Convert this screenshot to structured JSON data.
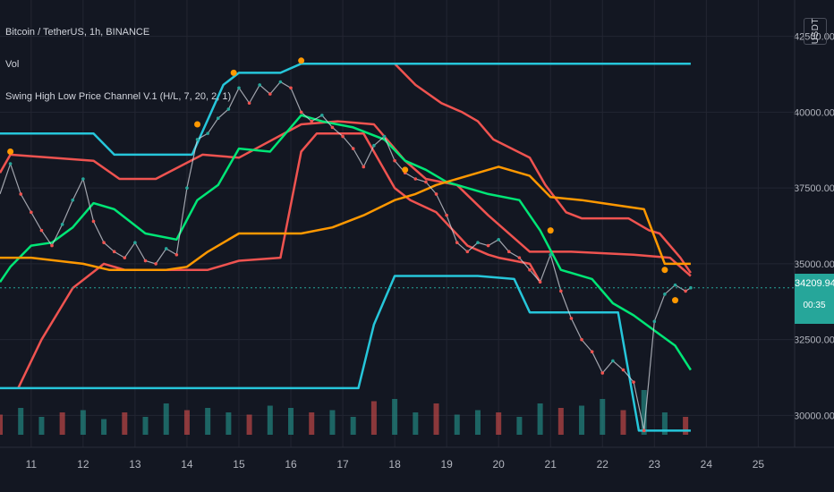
{
  "header": {
    "symbol_title": "Bitcoin / TetherUS, 1h, BINANCE",
    "volume_indicator": "Vol",
    "channel_indicator": "Swing High Low Price Channel V.1 (H/L, 7, 20, 2, 1)",
    "currency": "USDT"
  },
  "last_price": {
    "value": "34209.94",
    "countdown": "00:35",
    "color": "#26a69a"
  },
  "colors": {
    "background": "#131722",
    "grid": "#232632",
    "up": "#26a69a",
    "down": "#ef5350",
    "channel_high": "#ef5350",
    "channel_low": "#26c6da",
    "mid_green": "#00e676",
    "mid_orange": "#ff9800",
    "swing_marker": "#ff9800"
  },
  "chart_data": {
    "type": "line",
    "title": "Bitcoin / TetherUS, 1h, BINANCE",
    "x_ticks": [
      "11",
      "12",
      "13",
      "14",
      "15",
      "16",
      "17",
      "18",
      "19",
      "20",
      "21",
      "22",
      "23",
      "24",
      "25"
    ],
    "y_ticks": [
      "42500.00",
      "40000.00",
      "37500.00",
      "35000.00",
      "32500.00",
      "30000.00"
    ],
    "xlim": [
      10.4,
      25.7
    ],
    "ylim": [
      28950,
      43700
    ],
    "grid": true,
    "price_series": {
      "x": [
        10.4,
        10.6,
        10.8,
        11.0,
        11.2,
        11.4,
        11.6,
        11.8,
        12.0,
        12.2,
        12.4,
        12.6,
        12.8,
        13.0,
        13.2,
        13.4,
        13.6,
        13.8,
        14.0,
        14.2,
        14.4,
        14.6,
        14.8,
        15.0,
        15.2,
        15.4,
        15.6,
        15.8,
        16.0,
        16.2,
        16.4,
        16.6,
        16.8,
        17.0,
        17.2,
        17.4,
        17.6,
        17.8,
        18.0,
        18.2,
        18.4,
        18.6,
        18.8,
        19.0,
        19.2,
        19.4,
        19.6,
        19.8,
        20.0,
        20.2,
        20.4,
        20.6,
        20.8,
        21.0,
        21.2,
        21.4,
        21.6,
        21.8,
        22.0,
        22.2,
        22.4,
        22.6,
        22.8,
        23.0,
        23.2,
        23.4,
        23.6,
        23.7
      ],
      "y": [
        37300,
        38300,
        37300,
        36700,
        36100,
        35600,
        36300,
        37100,
        37800,
        36400,
        35700,
        35400,
        35200,
        35700,
        35100,
        35000,
        35500,
        35300,
        37500,
        39100,
        39300,
        39800,
        40100,
        40800,
        40300,
        40900,
        40600,
        41000,
        40800,
        40000,
        39700,
        39900,
        39500,
        39200,
        38800,
        38200,
        38900,
        39200,
        38400,
        38000,
        37800,
        37700,
        37300,
        36600,
        35700,
        35400,
        35700,
        35600,
        35800,
        35400,
        35200,
        34800,
        34400,
        35300,
        34100,
        33200,
        32500,
        32100,
        31400,
        31800,
        31500,
        31100,
        29500,
        33100,
        34000,
        34300,
        34100,
        34209.94
      ]
    },
    "series": [
      {
        "color": "#ef5350",
        "x": [
          10.4,
          10.6,
          12.2,
          12.7,
          13.4,
          14.3,
          15.0,
          16.2,
          16.9,
          17.6,
          18.2,
          18.6,
          19.2,
          19.8,
          20.6,
          21.4,
          22.6,
          23.3,
          23.7
        ],
        "y": [
          38000,
          38600,
          38400,
          37800,
          37800,
          38600,
          38500,
          39600,
          39700,
          39600,
          38400,
          37800,
          37600,
          36600,
          35400,
          35400,
          35300,
          35200,
          34600
        ]
      },
      {
        "color": "#ef5350",
        "x": [
          10.75,
          11.2,
          11.8,
          12.4,
          12.8,
          14.4,
          15.0,
          15.8,
          16.2,
          16.5,
          16.8,
          17.4,
          18.0,
          18.3,
          18.8,
          19.4,
          19.8,
          20.0,
          20.6,
          20.8
        ],
        "y": [
          30900,
          32500,
          34200,
          35000,
          34800,
          34800,
          35100,
          35200,
          38700,
          39300,
          39300,
          39300,
          37500,
          37100,
          36700,
          35600,
          35300,
          35200,
          35000,
          34400
        ]
      },
      {
        "color": "#ef5350",
        "x": [
          18.0,
          18.4,
          18.9,
          19.3,
          19.6,
          19.9,
          20.6,
          20.9,
          21.3,
          21.6,
          21.9,
          22.5,
          22.9,
          23.1,
          23.5,
          23.7
        ],
        "y": [
          41600,
          40900,
          40300,
          40000,
          39700,
          39100,
          38500,
          37600,
          36700,
          36500,
          36500,
          36500,
          36100,
          36000,
          35200,
          34700
        ]
      },
      {
        "color": "#26c6da",
        "x": [
          10.4,
          12.2,
          12.6,
          13.0,
          13.6,
          14.1,
          14.7,
          15.0,
          15.8,
          16.2,
          23.7
        ],
        "y": [
          39300,
          39300,
          38600,
          38600,
          38600,
          38600,
          40900,
          41300,
          41300,
          41600,
          41600
        ]
      },
      {
        "color": "#26c6da",
        "x": [
          10.4,
          16.8,
          17.3,
          17.6,
          18.0,
          18.5,
          19.6,
          20.3,
          20.6,
          21.0,
          21.6,
          22.3,
          22.7,
          22.8,
          23.7
        ],
        "y": [
          30900,
          30900,
          30900,
          33000,
          34600,
          34600,
          34600,
          34500,
          33400,
          33400,
          33400,
          33400,
          29500,
          29500,
          29500
        ]
      },
      {
        "color": "#00e676",
        "x": [
          10.4,
          10.6,
          11.0,
          11.4,
          11.8,
          12.2,
          12.6,
          13.2,
          13.8,
          14.2,
          14.6,
          15.0,
          15.6,
          16.2,
          16.6,
          17.2,
          17.8,
          18.2,
          18.6,
          19.0,
          19.4,
          19.8,
          20.4,
          20.8,
          21.2,
          21.8,
          22.2,
          22.6,
          23.0,
          23.4,
          23.7
        ],
        "y": [
          34400,
          34900,
          35600,
          35700,
          36200,
          37000,
          36800,
          36000,
          35800,
          37100,
          37600,
          38800,
          38700,
          39900,
          39700,
          39500,
          39100,
          38400,
          38100,
          37700,
          37500,
          37300,
          37100,
          36100,
          34800,
          34500,
          33700,
          33300,
          32800,
          32300,
          31500
        ]
      },
      {
        "color": "#ff9800",
        "x": [
          10.4,
          11.0,
          12.0,
          12.5,
          13.0,
          13.6,
          14.0,
          14.4,
          15.0,
          15.6,
          16.2,
          16.8,
          17.4,
          18.0,
          18.4,
          18.8,
          20.0,
          20.6,
          21.0,
          21.6,
          22.0,
          22.8,
          23.2,
          23.7
        ],
        "y": [
          35200,
          35200,
          35000,
          34800,
          34800,
          34800,
          34900,
          35400,
          36000,
          36000,
          36000,
          36200,
          36600,
          37100,
          37300,
          37600,
          38200,
          37900,
          37200,
          37100,
          37000,
          36800,
          35000,
          35000
        ]
      }
    ],
    "swing_markers": {
      "x": [
        10.6,
        14.2,
        14.9,
        16.2,
        18.2,
        21.0,
        23.2,
        23.4
      ],
      "y": [
        38700,
        39600,
        41300,
        41700,
        38100,
        36100,
        34800,
        33800
      ]
    },
    "volume": {
      "x": [
        10.4,
        10.8,
        11.2,
        11.6,
        12.0,
        12.4,
        12.8,
        13.2,
        13.6,
        14.0,
        14.4,
        14.8,
        15.2,
        15.6,
        16.0,
        16.4,
        16.8,
        17.2,
        17.6,
        18.0,
        18.4,
        18.8,
        19.2,
        19.6,
        20.0,
        20.4,
        20.8,
        21.2,
        21.6,
        22.0,
        22.4,
        22.8,
        23.2,
        23.6
      ],
      "values": [
        0.45,
        0.6,
        0.4,
        0.5,
        0.55,
        0.35,
        0.5,
        0.4,
        0.7,
        0.55,
        0.6,
        0.5,
        0.45,
        0.65,
        0.6,
        0.5,
        0.55,
        0.4,
        0.75,
        0.8,
        0.5,
        0.7,
        0.45,
        0.55,
        0.5,
        0.4,
        0.7,
        0.6,
        0.65,
        0.8,
        0.55,
        1.0,
        0.5,
        0.4
      ]
    }
  }
}
